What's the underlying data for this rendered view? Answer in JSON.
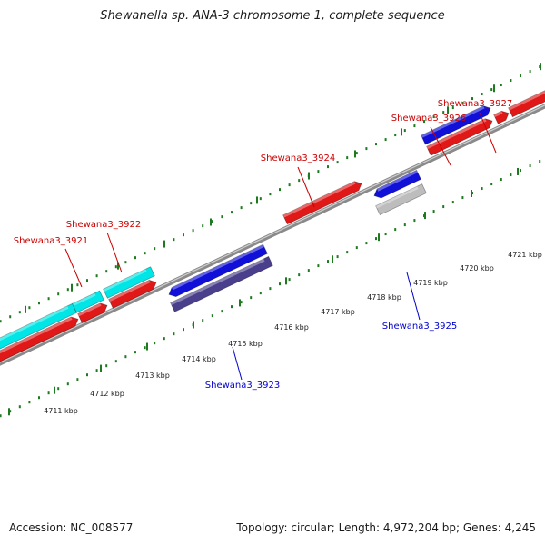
{
  "title": "Shewanella sp. ANA-3 chromosome 1, complete sequence",
  "accession": "Accession: NC_008577",
  "stats": "Topology: circular; Length: 4,972,204 bp; Genes: 4,245",
  "colors": {
    "backbone": "#8a8a8a",
    "tick": "#1e7a1e",
    "label_forward": "#cc0000",
    "label_reverse": "#0000cc",
    "cyan": "#00e5e5",
    "red": "#e01818",
    "blue": "#1010d8",
    "navy": "#4a3f8c",
    "gray": "#bdbdbd"
  },
  "scale_labels": [
    "4711 kbp",
    "4712 kbp",
    "4713 kbp",
    "4714 kbp",
    "4715 kbp",
    "4716 kbp",
    "4717 kbp",
    "4718 kbp",
    "4719 kbp",
    "4720 kbp",
    "4721 kbp"
  ],
  "gene_labels": [
    {
      "text": "Shewana3_3921",
      "strand": "forward"
    },
    {
      "text": "Shewana3_3922",
      "strand": "forward"
    },
    {
      "text": "Shewana3_3923",
      "strand": "reverse"
    },
    {
      "text": "Shewana3_3924",
      "strand": "forward"
    },
    {
      "text": "Shewana3_3925",
      "strand": "reverse"
    },
    {
      "text": "Shewana3_3926",
      "strand": "forward"
    },
    {
      "text": "Shewana3_3927",
      "strand": "forward"
    }
  ]
}
